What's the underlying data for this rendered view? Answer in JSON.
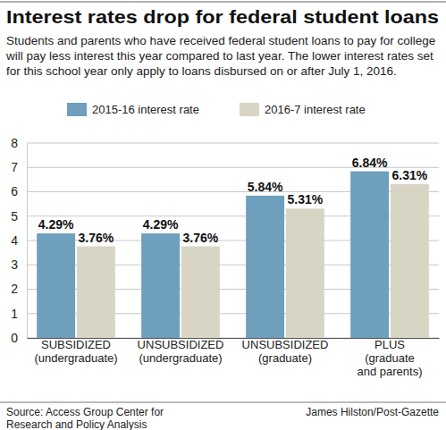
{
  "chart_data": {
    "type": "bar",
    "title": "Interest rates drop for federal student loans",
    "subtitle": "Students and parents who have received federal student loans to pay for college will pay less interest this year compared to last year. The lower interest rates set for this school year only apply to loans disbursed on or after July 1, 2016.",
    "categories": [
      "SUBSIDIZED (undergraduate)",
      "UNSUBSIDIZED (undergraduate)",
      "UNSUBSIDIZED (graduate)",
      "PLUS (graduate and parents)"
    ],
    "series": [
      {
        "name": "2015-16 interest rate",
        "color": "#6e9fbd",
        "values": [
          4.29,
          4.29,
          5.84,
          6.84
        ],
        "value_labels": [
          "4.29%",
          "4.29%",
          "5.84%",
          "6.84%"
        ]
      },
      {
        "name": "2016-7 interest rate",
        "color": "#d9d5c5",
        "values": [
          3.76,
          3.76,
          5.31,
          6.31
        ],
        "value_labels": [
          "3.76%",
          "3.76%",
          "5.31%",
          "6.31%"
        ]
      }
    ],
    "ylim": [
      0,
      8
    ],
    "yticks": [
      0,
      1,
      2,
      3,
      4,
      5,
      6,
      7,
      8
    ],
    "grid": true,
    "legend": "top",
    "data_labels": true,
    "source": "Source: Access Group Center for Research and Policy Analysis",
    "credit": "James Hilston/Post-Gazette"
  }
}
